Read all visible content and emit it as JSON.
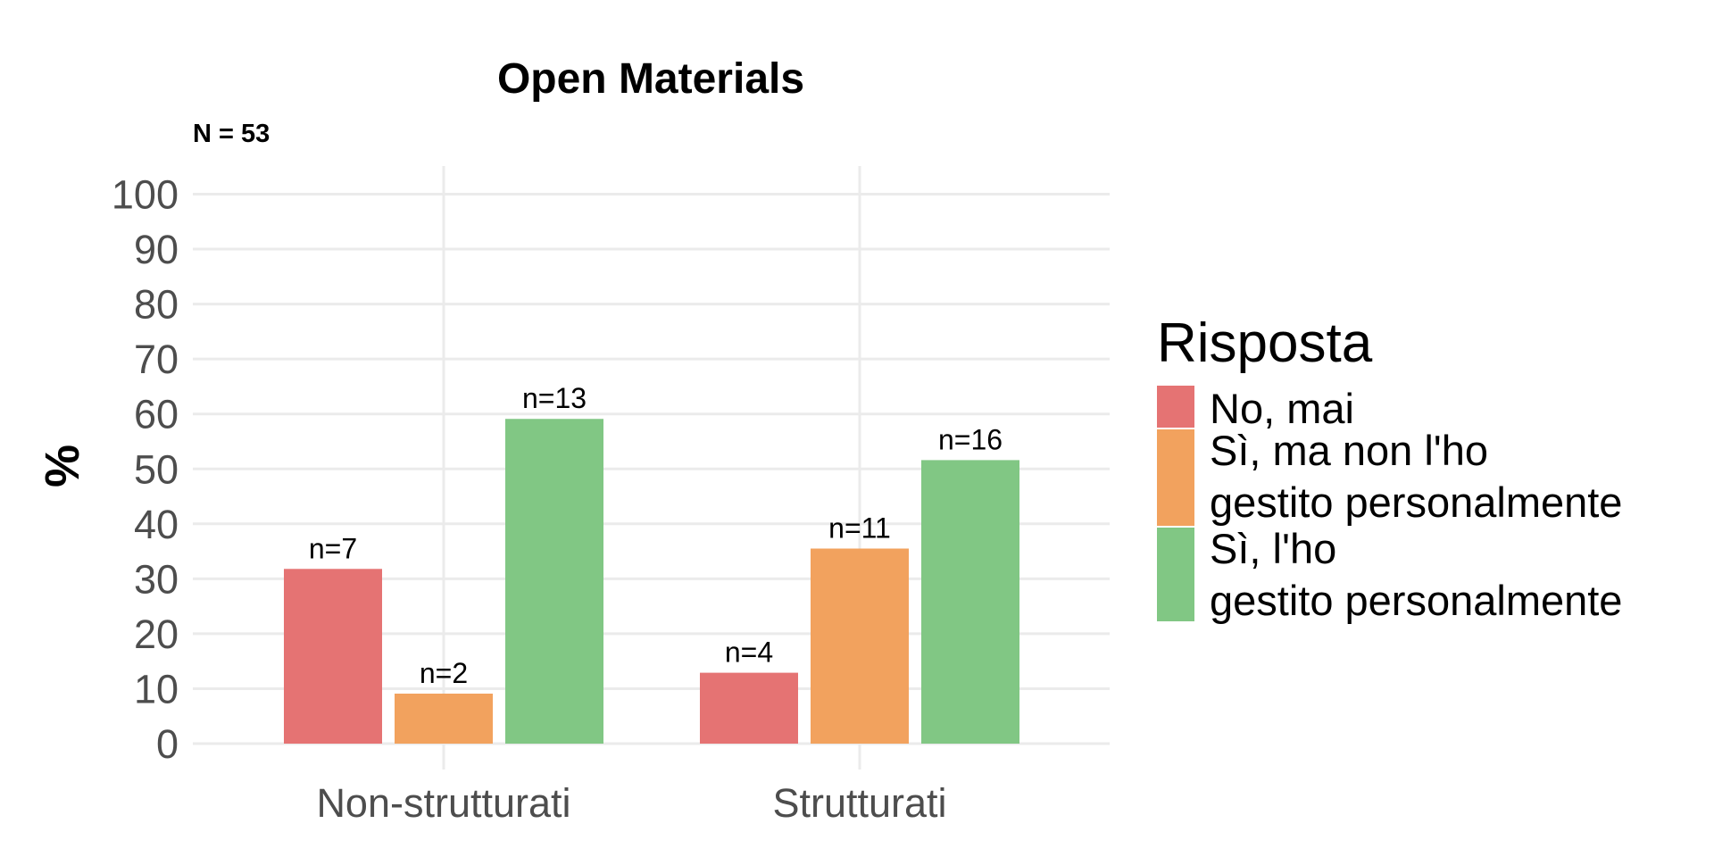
{
  "chart_data": {
    "type": "bar",
    "title": "Open Materials",
    "subtitle": "N = 53",
    "xlabel": "",
    "ylabel": "%",
    "ylim": [
      0,
      100
    ],
    "yticks": [
      0,
      10,
      20,
      30,
      40,
      50,
      60,
      70,
      80,
      90,
      100
    ],
    "categories": [
      "Non-strutturati",
      "Strutturati"
    ],
    "series": [
      {
        "name": "No, mai",
        "color": "#E57373",
        "values": [
          31.8,
          12.9
        ],
        "labels": [
          "n=7",
          "n=4"
        ]
      },
      {
        "name": "Sì, ma non l'ho gestito personalmente",
        "color": "#F2A25E",
        "values": [
          9.1,
          35.5
        ],
        "labels": [
          "n=2",
          "n=11"
        ]
      },
      {
        "name": "Sì, l'ho gestito personalmente",
        "color": "#81C784",
        "values": [
          59.1,
          51.6
        ],
        "labels": [
          "n=13",
          "n=16"
        ]
      }
    ],
    "legend": {
      "title": "Risposta",
      "position": "right",
      "entries": [
        [
          "No, mai"
        ],
        [
          "Sì, ma non l'ho",
          "gestito personalmente"
        ],
        [
          "Sì, l'ho",
          "gestito personalmente"
        ]
      ]
    },
    "grid": true
  }
}
